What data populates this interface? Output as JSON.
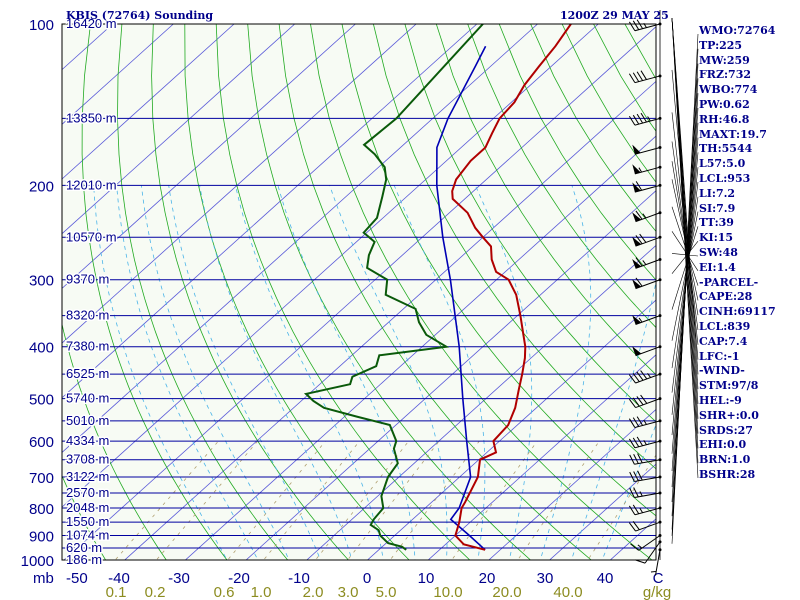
{
  "header": {
    "station": "KBIS (72764) Sounding",
    "valid_time": "1200Z 29 MAY 25"
  },
  "indices": [
    "WMO:72764",
    "TP:225",
    "MW:259",
    "FRZ:732",
    "WBO:774",
    "PW:0.62",
    "RH:46.8",
    "MAXT:19.7",
    "TH:5544",
    "L57:5.0",
    "LCL:953",
    "LI:7.2",
    "SI:7.9",
    "TT:39",
    "KI:15",
    "SW:48",
    "EI:1.4",
    "-PARCEL-",
    "CAPE:28",
    "CINH:69117",
    "LCL:839",
    "CAP:7.4",
    "LFC:-1",
    "-WIND-",
    "STM:97/8",
    "HEL:-9",
    "SHR+:0.0",
    "SRDS:27",
    "EHI:0.0",
    "BRN:1.0",
    "BSHR:28"
  ],
  "colors": {
    "background": "#f7fbf4",
    "isobar": "#0000a0",
    "isotherm": "#5a5ad8",
    "dry_adiabat": "#22aa22",
    "moist_adiabat": "#4ab4e8",
    "mixing_ratio": "#b0a070",
    "temperature": "#b00000",
    "dewpoint": "#0a5a0a",
    "parcel": "#0000b4",
    "axis_text": "#00008b",
    "mixing_text": "#8c8c20"
  },
  "chart_data": {
    "type": "skew-t",
    "x_ticks": [
      "-50",
      "-40",
      "-30",
      "-20",
      "-10",
      "0",
      "10",
      "20",
      "30",
      "40",
      "C"
    ],
    "pressure_levels": [
      100,
      200,
      300,
      400,
      500,
      600,
      700,
      800,
      900,
      1000
    ],
    "corner_label": "mb",
    "height_labels": [
      {
        "p": 100,
        "h": "16420 m"
      },
      {
        "p": 150,
        "h": "13850 m"
      },
      {
        "p": 200,
        "h": "12010 m"
      },
      {
        "p": 250,
        "h": "10570 m"
      },
      {
        "p": 300,
        "h": "9370 m"
      },
      {
        "p": 350,
        "h": "8320 m"
      },
      {
        "p": 400,
        "h": "7380 m"
      },
      {
        "p": 450,
        "h": "6525 m"
      },
      {
        "p": 500,
        "h": "5740 m"
      },
      {
        "p": 550,
        "h": "5010 m"
      },
      {
        "p": 600,
        "h": "4334 m"
      },
      {
        "p": 650,
        "h": "3708 m"
      },
      {
        "p": 700,
        "h": "3122 m"
      },
      {
        "p": 750,
        "h": "2570 m"
      },
      {
        "p": 800,
        "h": "2048 m"
      },
      {
        "p": 850,
        "h": "1550 m"
      },
      {
        "p": 900,
        "h": "1074 m"
      },
      {
        "p": 950,
        "h": "620 m"
      },
      {
        "p": 1000,
        "h": "186 m"
      }
    ],
    "mixing_ratio_labels": [
      "0.1",
      "0.2",
      "0.6",
      "1.0",
      "2.0",
      "3.0",
      "5.0",
      "10.0",
      "20.0",
      "40.0",
      "g/kg"
    ],
    "temperature": [
      [
        957,
        17.5
      ],
      [
        935,
        13
      ],
      [
        900,
        10
      ],
      [
        850,
        8.2
      ],
      [
        800,
        6
      ],
      [
        780,
        5.5
      ],
      [
        700,
        3.0
      ],
      [
        650,
        0.2
      ],
      [
        630,
        1.5
      ],
      [
        600,
        -1.0
      ],
      [
        560,
        -1.5
      ],
      [
        520,
        -3.5
      ],
      [
        480,
        -6.3
      ],
      [
        450,
        -8.5
      ],
      [
        420,
        -11
      ],
      [
        400,
        -13
      ],
      [
        380,
        -15.5
      ],
      [
        350,
        -19.5
      ],
      [
        320,
        -24
      ],
      [
        300,
        -28
      ],
      [
        290,
        -31.5
      ],
      [
        275,
        -34.5
      ],
      [
        260,
        -37
      ],
      [
        250,
        -40
      ],
      [
        240,
        -43
      ],
      [
        225,
        -47
      ],
      [
        212,
        -52
      ],
      [
        205,
        -53.5
      ],
      [
        195,
        -55
      ],
      [
        180,
        -56
      ],
      [
        170,
        -56
      ],
      [
        160,
        -57.5
      ],
      [
        150,
        -59
      ],
      [
        140,
        -59.5
      ],
      [
        130,
        -61
      ],
      [
        120,
        -62
      ],
      [
        110,
        -63
      ],
      [
        100,
        -64.5
      ]
    ],
    "dewpoint": [
      [
        957,
        4.5
      ],
      [
        945,
        3.3
      ],
      [
        930,
        0.3
      ],
      [
        900,
        -2.4
      ],
      [
        880,
        -3.6
      ],
      [
        860,
        -5.9
      ],
      [
        840,
        -6.4
      ],
      [
        800,
        -6.9
      ],
      [
        760,
        -9.4
      ],
      [
        700,
        -11.8
      ],
      [
        660,
        -12.7
      ],
      [
        620,
        -16.0
      ],
      [
        600,
        -17.0
      ],
      [
        560,
        -21.0
      ],
      [
        540,
        -28.0
      ],
      [
        520,
        -35.0
      ],
      [
        505,
        -38.0
      ],
      [
        490,
        -40.5
      ],
      [
        470,
        -35.0
      ],
      [
        455,
        -36.0
      ],
      [
        435,
        -34.0
      ],
      [
        415,
        -35.5
      ],
      [
        400,
        -26.0
      ],
      [
        380,
        -31.5
      ],
      [
        360,
        -35.0
      ],
      [
        340,
        -38.0
      ],
      [
        320,
        -45.5
      ],
      [
        300,
        -48.0
      ],
      [
        285,
        -53.5
      ],
      [
        270,
        -55.5
      ],
      [
        255,
        -57.0
      ],
      [
        245,
        -60.5
      ],
      [
        230,
        -61.0
      ],
      [
        210,
        -64.0
      ],
      [
        195,
        -66.5
      ],
      [
        185,
        -69.0
      ],
      [
        175,
        -73.0
      ],
      [
        168,
        -76.5
      ],
      [
        150,
        -76.0
      ],
      [
        100,
        -79.0
      ]
    ],
    "parcel": [
      [
        957,
        17.5
      ],
      [
        900,
        12.3
      ],
      [
        840,
        6.3
      ],
      [
        800,
        5.6
      ],
      [
        700,
        1.8
      ],
      [
        600,
        -5.4
      ],
      [
        500,
        -13.8
      ],
      [
        400,
        -23.9
      ],
      [
        300,
        -37.6
      ],
      [
        250,
        -46.6
      ],
      [
        200,
        -57.1
      ],
      [
        170,
        -64.0
      ],
      [
        150,
        -67.5
      ],
      [
        120,
        -72.5
      ],
      [
        110,
        -74.5
      ]
    ],
    "barbs": [
      {
        "p": 957,
        "dir": 190,
        "spd": 5
      },
      {
        "p": 925,
        "dir": 215,
        "spd": 10
      },
      {
        "p": 900,
        "dir": 235,
        "spd": 15
      },
      {
        "p": 850,
        "dir": 250,
        "spd": 20
      },
      {
        "p": 800,
        "dir": 255,
        "spd": 25
      },
      {
        "p": 750,
        "dir": 260,
        "spd": 25
      },
      {
        "p": 700,
        "dir": 260,
        "spd": 30
      },
      {
        "p": 650,
        "dir": 260,
        "spd": 30
      },
      {
        "p": 600,
        "dir": 255,
        "spd": 35
      },
      {
        "p": 550,
        "dir": 255,
        "spd": 35
      },
      {
        "p": 500,
        "dir": 250,
        "spd": 40
      },
      {
        "p": 450,
        "dir": 250,
        "spd": 45
      },
      {
        "p": 400,
        "dir": 250,
        "spd": 50
      },
      {
        "p": 350,
        "dir": 250,
        "spd": 55
      },
      {
        "p": 300,
        "dir": 250,
        "spd": 60
      },
      {
        "p": 275,
        "dir": 250,
        "spd": 65
      },
      {
        "p": 250,
        "dir": 250,
        "spd": 70
      },
      {
        "p": 225,
        "dir": 250,
        "spd": 65
      },
      {
        "p": 200,
        "dir": 255,
        "spd": 60
      },
      {
        "p": 185,
        "dir": 255,
        "spd": 55
      },
      {
        "p": 170,
        "dir": 255,
        "spd": 50
      },
      {
        "p": 150,
        "dir": 255,
        "spd": 45
      },
      {
        "p": 125,
        "dir": 255,
        "spd": 40
      },
      {
        "p": 100,
        "dir": 255,
        "spd": 35
      }
    ]
  }
}
